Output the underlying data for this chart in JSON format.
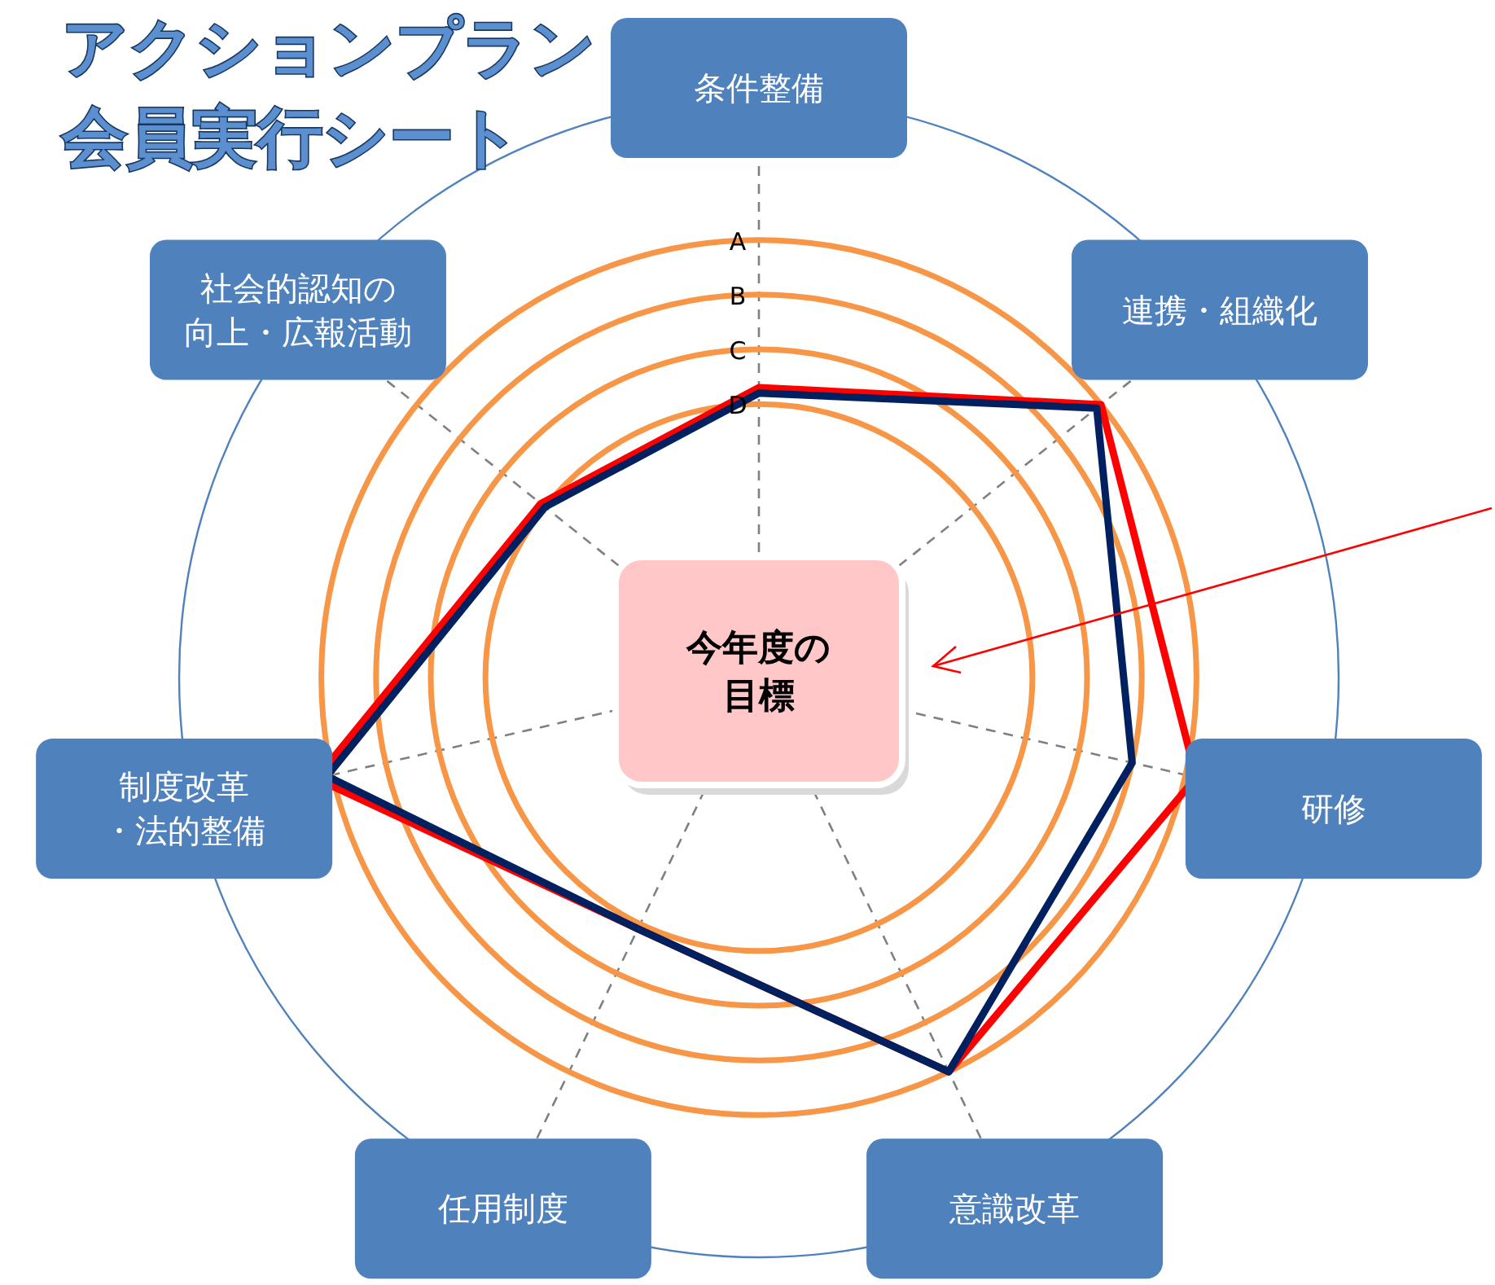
{
  "chart_data": {
    "type": "radar",
    "title": "アクションプラン",
    "subtitle": "会員実行シート",
    "categories": [
      "条件整備",
      "連携・組織化",
      "研修",
      "意識改革",
      "任用制度",
      "制度改革・法的整備",
      "社会的認知の向上・広報活動"
    ],
    "series": [
      {
        "color": "#ff0000",
        "values": [
          5.3,
          8.0,
          8.2,
          8.0,
          5.1,
          8.3,
          5.1
        ]
      },
      {
        "color": "#002060",
        "values": [
          5.2,
          7.9,
          7.0,
          8.0,
          5.1,
          8.1,
          5.0
        ]
      }
    ],
    "ylim": [
      0,
      10.6
    ],
    "yticks": [
      {
        "value": 5,
        "label": "D"
      },
      {
        "value": 6,
        "label": "C"
      },
      {
        "value": 7,
        "label": "B"
      },
      {
        "value": 8,
        "label": "A"
      }
    ],
    "grid": true,
    "annotations": [
      "今年度の目標"
    ]
  }
}
